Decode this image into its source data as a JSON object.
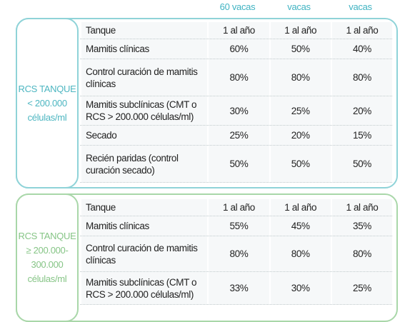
{
  "header": {
    "columns": [
      "60 vacas",
      "vacas",
      "vacas"
    ]
  },
  "groups": [
    {
      "label": [
        "RCS TANQUE",
        "< 200.000",
        "células/ml"
      ],
      "rows": [
        {
          "name": "Tanque",
          "values": [
            "1 al año",
            "1 al año",
            "1 al año"
          ]
        },
        {
          "name": "Mamitis clínicas",
          "values": [
            "60%",
            "50%",
            "40%"
          ]
        },
        {
          "name": "Control curación de mamitis clínicas",
          "values": [
            "80%",
            "80%",
            "80%"
          ]
        },
        {
          "name": "Mamitis subclínicas (CMT o RCS > 200.000 células/ml)",
          "values": [
            "30%",
            "25%",
            "20%"
          ]
        },
        {
          "name": "Secado",
          "values": [
            "25%",
            "20%",
            "15%"
          ]
        },
        {
          "name": "Recién paridas (control curación secado)",
          "values": [
            "50%",
            "50%",
            "50%"
          ]
        }
      ]
    },
    {
      "label": [
        "RCS TANQUE",
        "≥ 200.000-",
        "300.000",
        "células/ml"
      ],
      "rows": [
        {
          "name": "Tanque",
          "values": [
            "1 al año",
            "1 al año",
            "1 al año"
          ]
        },
        {
          "name": "Mamitis clínicas",
          "values": [
            "55%",
            "45%",
            "35%"
          ]
        },
        {
          "name": "Control curación de mamitis clínicas",
          "values": [
            "80%",
            "80%",
            "80%"
          ]
        },
        {
          "name": "Mamitis subclínicas (CMT o RCS > 200.000 células/ml)",
          "values": [
            "33%",
            "30%",
            "25%"
          ]
        }
      ]
    }
  ]
}
